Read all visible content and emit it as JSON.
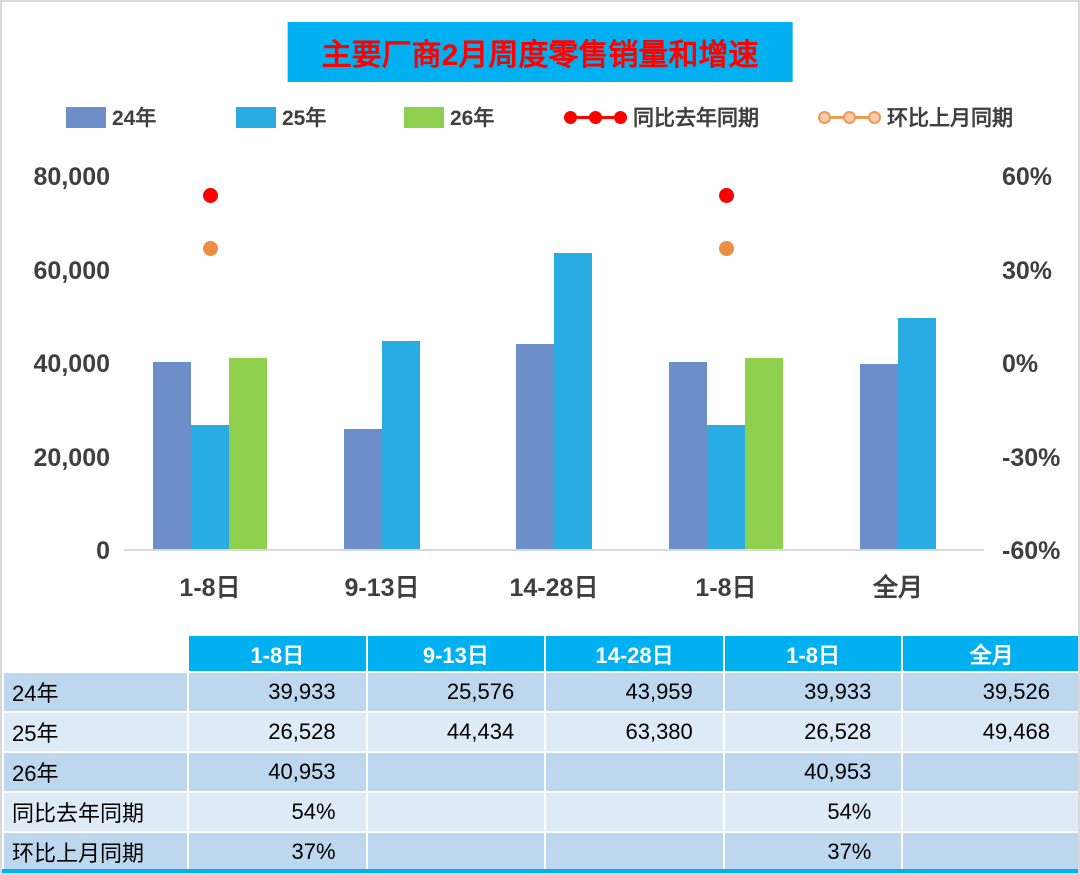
{
  "title": "主要厂商2月周度零售销量和增速",
  "colors": {
    "accent": "#00B0F0",
    "title_red": "#FF0000",
    "bar_24": "#6C8FC9",
    "bar_25": "#29ABE3",
    "bar_26": "#8FD04E",
    "line_yoy": "#FF0000",
    "line_mom": "#ED9A56",
    "line_mom_fill": "#F8CBAD",
    "row_dark": "#BDD7EE",
    "row_light": "#DEEAF6",
    "axis_text": "#3F3F3F"
  },
  "legend": [
    {
      "label": "24年",
      "type": "bar",
      "color": "#6C8FC9",
      "fill": "#6C8FC9"
    },
    {
      "label": "25年",
      "type": "bar",
      "color": "#29ABE3",
      "fill": "#29ABE3"
    },
    {
      "label": "26年",
      "type": "bar",
      "color": "#8FD04E",
      "fill": "#8FD04E"
    },
    {
      "label": "同比去年同期",
      "type": "line",
      "color": "#FF0000",
      "fill": "#FF0000"
    },
    {
      "label": "环比上月同期",
      "type": "line",
      "color": "#ED9A56",
      "fill": "#F8CBAD"
    }
  ],
  "chart_data": {
    "type": "bar",
    "title": "主要厂商2月周度零售销量和增速",
    "categories": [
      "1-8日",
      "9-13日",
      "14-28日",
      "1-8日",
      "全月"
    ],
    "series": [
      {
        "name": "24年",
        "type": "bar",
        "axis": "left",
        "color": "#6C8FC9",
        "values": [
          39933,
          25576,
          43959,
          39933,
          39526
        ]
      },
      {
        "name": "25年",
        "type": "bar",
        "axis": "left",
        "color": "#29ABE3",
        "values": [
          26528,
          44434,
          63380,
          26528,
          49468
        ]
      },
      {
        "name": "26年",
        "type": "bar",
        "axis": "left",
        "color": "#8FD04E",
        "values": [
          40953,
          null,
          null,
          40953,
          null
        ]
      },
      {
        "name": "同比去年同期",
        "type": "line",
        "axis": "right",
        "unit": "%",
        "color": "#FF0000",
        "values": [
          54,
          null,
          null,
          54,
          null
        ]
      },
      {
        "name": "环比上月同期",
        "type": "line",
        "axis": "right",
        "unit": "%",
        "color": "#ED8C44",
        "values": [
          37,
          null,
          null,
          37,
          null
        ]
      }
    ],
    "left_axis": {
      "min": 0,
      "max": 80000,
      "ticks": [
        "80,000",
        "60,000",
        "40,000",
        "20,000",
        "0"
      ]
    },
    "right_axis": {
      "min": -60,
      "max": 60,
      "ticks": [
        "60%",
        "30%",
        "0%",
        "-30%",
        "-60%"
      ]
    },
    "legend_position": "top",
    "grid": false
  },
  "table": {
    "headers": [
      "",
      "1-8日",
      "9-13日",
      "14-28日",
      "1-8日",
      "全月"
    ],
    "rows": [
      {
        "label": "24年",
        "values": [
          "39,933",
          "25,576",
          "43,959",
          "39,933",
          "39,526"
        ]
      },
      {
        "label": "25年",
        "values": [
          "26,528",
          "44,434",
          "63,380",
          "26,528",
          "49,468"
        ]
      },
      {
        "label": "26年",
        "values": [
          "40,953",
          "",
          "",
          "40,953",
          ""
        ]
      },
      {
        "label": "同比去年同期",
        "values": [
          "54%",
          "",
          "",
          "54%",
          ""
        ]
      },
      {
        "label": "环比上月同期",
        "values": [
          "37%",
          "",
          "",
          "37%",
          ""
        ]
      }
    ]
  }
}
